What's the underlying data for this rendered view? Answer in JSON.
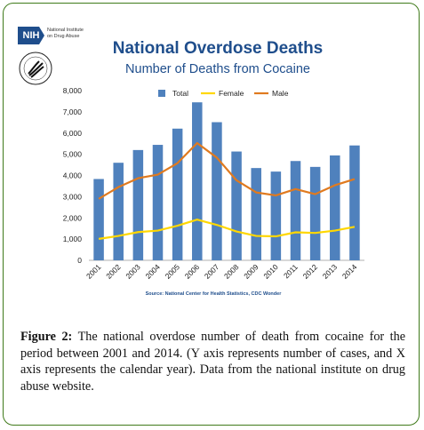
{
  "logo": {
    "nih_badge": "NIH",
    "nih_text": "National Institute on Drug Abuse"
  },
  "chart_data": {
    "type": "bar",
    "title": "National Overdose Deaths",
    "subtitle": "Number of Deaths from Cocaine",
    "categories": [
      "2001",
      "2002",
      "2003",
      "2004",
      "2005",
      "2006",
      "2007",
      "2008",
      "2009",
      "2010",
      "2011",
      "2012",
      "2013",
      "2014"
    ],
    "series": [
      {
        "name": "Total",
        "type": "bar",
        "color": "#4f81bd",
        "values": [
          3833,
          4599,
          5199,
          5443,
          6208,
          7448,
          6512,
          5129,
          4350,
          4183,
          4681,
          4404,
          4944,
          5415
        ]
      },
      {
        "name": "Female",
        "type": "line",
        "color": "#ffd700",
        "values": [
          1010,
          1150,
          1330,
          1400,
          1630,
          1920,
          1670,
          1360,
          1150,
          1130,
          1320,
          1290,
          1400,
          1580
        ]
      },
      {
        "name": "Male",
        "type": "line",
        "color": "#e07a1f",
        "values": [
          2900,
          3450,
          3870,
          4040,
          4580,
          5530,
          4840,
          3770,
          3200,
          3060,
          3360,
          3120,
          3540,
          3830
        ]
      }
    ],
    "ylim": [
      0,
      8000
    ],
    "yticks": [
      "0",
      "1,000",
      "2,000",
      "3,000",
      "4,000",
      "5,000",
      "6,000",
      "7,000",
      "8,000"
    ],
    "legend_position": "top",
    "source": "Source: National Center for Health Statistics, CDC Wonder"
  },
  "caption": {
    "label": "Figure 2:",
    "text": " The national overdose number of death from cocaine for the period between 2001 and 2014. (Y axis represents number of cases, and X axis represents the calendar year). Data from the national institute on drug abuse website."
  }
}
